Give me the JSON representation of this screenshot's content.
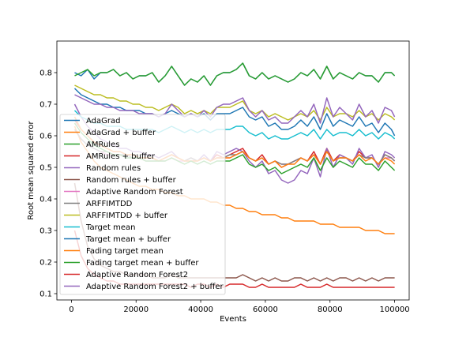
{
  "chart_data": {
    "type": "line",
    "title": "",
    "xlabel": "Events",
    "ylabel": "Root mean squared error",
    "xlim": [
      -4500,
      104500
    ],
    "ylim": [
      0.08,
      0.9
    ],
    "x_ticks": [
      0,
      20000,
      40000,
      60000,
      80000,
      100000
    ],
    "y_ticks": [
      0.1,
      0.2,
      0.3,
      0.4,
      0.5,
      0.6,
      0.7,
      0.8
    ],
    "grid": false,
    "legend_position": "lower-left",
    "x": [
      1000,
      3000,
      5000,
      7000,
      9000,
      11000,
      13000,
      15000,
      17000,
      19000,
      21000,
      23000,
      25000,
      27000,
      29000,
      31000,
      33000,
      35000,
      37000,
      39000,
      41000,
      43000,
      45000,
      47000,
      49000,
      51000,
      53000,
      55000,
      57000,
      59000,
      61000,
      63000,
      65000,
      67000,
      69000,
      71000,
      73000,
      75000,
      77000,
      79000,
      81000,
      83000,
      85000,
      87000,
      89000,
      91000,
      93000,
      95000,
      97000,
      99000,
      100000
    ],
    "series": [
      {
        "name": "AdaGrad",
        "color": "#1f77b4",
        "values": [
          0.8,
          0.79,
          0.81,
          0.78,
          0.8,
          0.8,
          0.81,
          0.79,
          0.8,
          0.78,
          0.79,
          0.79,
          0.8,
          0.77,
          0.79,
          0.82,
          0.79,
          0.76,
          0.78,
          0.77,
          0.79,
          0.76,
          0.79,
          0.8,
          0.8,
          0.81,
          0.83,
          0.79,
          0.78,
          0.8,
          0.78,
          0.79,
          0.78,
          0.77,
          0.78,
          0.8,
          0.79,
          0.81,
          0.78,
          0.82,
          0.78,
          0.8,
          0.79,
          0.78,
          0.8,
          0.79,
          0.79,
          0.77,
          0.8,
          0.8,
          0.79
        ]
      },
      {
        "name": "AdaGrad + buffer",
        "color": "#ff7f0e",
        "values": [
          0.63,
          0.58,
          0.55,
          0.52,
          0.5,
          0.49,
          0.48,
          0.47,
          0.46,
          0.45,
          0.44,
          0.44,
          0.43,
          0.43,
          0.42,
          0.42,
          0.41,
          0.41,
          0.4,
          0.4,
          0.4,
          0.39,
          0.39,
          0.38,
          0.38,
          0.37,
          0.37,
          0.36,
          0.36,
          0.35,
          0.35,
          0.35,
          0.34,
          0.34,
          0.33,
          0.33,
          0.33,
          0.33,
          0.32,
          0.32,
          0.32,
          0.31,
          0.31,
          0.31,
          0.31,
          0.3,
          0.3,
          0.3,
          0.29,
          0.29,
          0.29
        ]
      },
      {
        "name": "AMRules",
        "color": "#2ca02c",
        "values": [
          0.79,
          0.8,
          0.81,
          0.79,
          0.8,
          0.8,
          0.81,
          0.79,
          0.8,
          0.78,
          0.79,
          0.79,
          0.8,
          0.77,
          0.79,
          0.82,
          0.79,
          0.76,
          0.78,
          0.77,
          0.79,
          0.76,
          0.79,
          0.8,
          0.8,
          0.81,
          0.83,
          0.79,
          0.78,
          0.8,
          0.78,
          0.79,
          0.78,
          0.77,
          0.78,
          0.8,
          0.79,
          0.81,
          0.78,
          0.82,
          0.78,
          0.8,
          0.79,
          0.78,
          0.8,
          0.79,
          0.79,
          0.77,
          0.8,
          0.8,
          0.79
        ]
      },
      {
        "name": "AMRules + buffer",
        "color": "#d62728",
        "values": [
          0.65,
          0.62,
          0.6,
          0.58,
          0.57,
          0.56,
          0.55,
          0.55,
          0.54,
          0.54,
          0.53,
          0.53,
          0.53,
          0.52,
          0.53,
          0.54,
          0.53,
          0.52,
          0.53,
          0.52,
          0.53,
          0.52,
          0.54,
          0.53,
          0.54,
          0.55,
          0.56,
          0.53,
          0.52,
          0.54,
          0.51,
          0.52,
          0.5,
          0.51,
          0.52,
          0.53,
          0.52,
          0.55,
          0.51,
          0.56,
          0.52,
          0.54,
          0.53,
          0.52,
          0.55,
          0.53,
          0.53,
          0.51,
          0.54,
          0.53,
          0.52
        ]
      },
      {
        "name": "Random rules",
        "color": "#9467bd",
        "values": [
          0.7,
          0.66,
          0.63,
          0.61,
          0.59,
          0.58,
          0.57,
          0.56,
          0.56,
          0.55,
          0.55,
          0.54,
          0.54,
          0.53,
          0.54,
          0.55,
          0.53,
          0.52,
          0.53,
          0.52,
          0.54,
          0.52,
          0.55,
          0.54,
          0.55,
          0.56,
          0.55,
          0.52,
          0.5,
          0.52,
          0.48,
          0.49,
          0.46,
          0.45,
          0.46,
          0.49,
          0.48,
          0.53,
          0.47,
          0.56,
          0.5,
          0.54,
          0.53,
          0.51,
          0.56,
          0.53,
          0.54,
          0.5,
          0.55,
          0.54,
          0.53
        ]
      },
      {
        "name": "Random rules + buffer",
        "color": "#8c564b",
        "values": [
          0.45,
          0.33,
          0.25,
          0.21,
          0.19,
          0.18,
          0.17,
          0.17,
          0.16,
          0.16,
          0.16,
          0.16,
          0.15,
          0.15,
          0.15,
          0.16,
          0.15,
          0.15,
          0.15,
          0.15,
          0.15,
          0.15,
          0.15,
          0.15,
          0.15,
          0.15,
          0.16,
          0.15,
          0.14,
          0.15,
          0.14,
          0.15,
          0.14,
          0.14,
          0.15,
          0.15,
          0.14,
          0.15,
          0.14,
          0.15,
          0.14,
          0.15,
          0.15,
          0.14,
          0.15,
          0.14,
          0.15,
          0.14,
          0.15,
          0.15,
          0.15
        ]
      },
      {
        "name": "Adaptive Random Forest",
        "color": "#e377c2",
        "values": [
          0.62,
          0.59,
          0.57,
          0.56,
          0.55,
          0.54,
          0.54,
          0.54,
          0.53,
          0.53,
          0.53,
          0.52,
          0.52,
          0.52,
          0.52,
          0.53,
          0.52,
          0.52,
          0.52,
          0.52,
          0.53,
          0.52,
          0.53,
          0.53,
          0.53,
          0.54,
          0.55,
          0.53,
          0.52,
          0.53,
          0.51,
          0.52,
          0.51,
          0.51,
          0.52,
          0.53,
          0.52,
          0.54,
          0.51,
          0.55,
          0.52,
          0.53,
          0.53,
          0.52,
          0.54,
          0.53,
          0.53,
          0.51,
          0.53,
          0.53,
          0.52
        ]
      },
      {
        "name": "ARFFIMTDD",
        "color": "#7f7f7f",
        "values": [
          0.62,
          0.59,
          0.57,
          0.56,
          0.55,
          0.55,
          0.54,
          0.54,
          0.54,
          0.53,
          0.53,
          0.53,
          0.53,
          0.52,
          0.53,
          0.54,
          0.53,
          0.52,
          0.53,
          0.52,
          0.53,
          0.52,
          0.53,
          0.53,
          0.54,
          0.54,
          0.55,
          0.53,
          0.52,
          0.53,
          0.51,
          0.52,
          0.51,
          0.51,
          0.52,
          0.53,
          0.52,
          0.54,
          0.51,
          0.55,
          0.52,
          0.53,
          0.53,
          0.52,
          0.54,
          0.53,
          0.53,
          0.51,
          0.54,
          0.53,
          0.52
        ]
      },
      {
        "name": "ARFFIMTDD + buffer",
        "color": "#bcbd22",
        "values": [
          0.76,
          0.75,
          0.74,
          0.73,
          0.73,
          0.72,
          0.72,
          0.71,
          0.71,
          0.7,
          0.7,
          0.69,
          0.69,
          0.68,
          0.69,
          0.7,
          0.69,
          0.67,
          0.68,
          0.67,
          0.68,
          0.67,
          0.69,
          0.69,
          0.69,
          0.7,
          0.71,
          0.68,
          0.67,
          0.68,
          0.66,
          0.67,
          0.66,
          0.65,
          0.66,
          0.67,
          0.66,
          0.68,
          0.65,
          0.69,
          0.66,
          0.67,
          0.67,
          0.66,
          0.68,
          0.66,
          0.67,
          0.65,
          0.67,
          0.66,
          0.65
        ]
      },
      {
        "name": "Target mean",
        "color": "#17becf",
        "values": [
          0.68,
          0.66,
          0.65,
          0.64,
          0.64,
          0.63,
          0.63,
          0.63,
          0.62,
          0.62,
          0.62,
          0.62,
          0.62,
          0.61,
          0.62,
          0.63,
          0.62,
          0.61,
          0.62,
          0.61,
          0.62,
          0.61,
          0.62,
          0.62,
          0.62,
          0.63,
          0.63,
          0.61,
          0.6,
          0.61,
          0.59,
          0.6,
          0.59,
          0.59,
          0.6,
          0.61,
          0.6,
          0.62,
          0.59,
          0.62,
          0.6,
          0.61,
          0.61,
          0.6,
          0.62,
          0.6,
          0.61,
          0.59,
          0.61,
          0.6,
          0.59
        ]
      },
      {
        "name": "Target mean + buffer",
        "color": "#1f77b4",
        "values": [
          0.75,
          0.73,
          0.72,
          0.71,
          0.7,
          0.7,
          0.69,
          0.69,
          0.68,
          0.68,
          0.68,
          0.67,
          0.67,
          0.66,
          0.67,
          0.68,
          0.67,
          0.66,
          0.67,
          0.66,
          0.67,
          0.65,
          0.67,
          0.67,
          0.67,
          0.68,
          0.69,
          0.66,
          0.65,
          0.66,
          0.63,
          0.64,
          0.62,
          0.62,
          0.63,
          0.65,
          0.63,
          0.66,
          0.62,
          0.67,
          0.63,
          0.65,
          0.64,
          0.63,
          0.66,
          0.63,
          0.64,
          0.61,
          0.64,
          0.62,
          0.6
        ]
      },
      {
        "name": "Fading target mean",
        "color": "#ff7f0e",
        "values": [
          0.66,
          0.62,
          0.6,
          0.58,
          0.57,
          0.56,
          0.55,
          0.55,
          0.54,
          0.54,
          0.53,
          0.53,
          0.53,
          0.52,
          0.53,
          0.54,
          0.53,
          0.52,
          0.52,
          0.52,
          0.53,
          0.52,
          0.53,
          0.53,
          0.53,
          0.54,
          0.55,
          0.53,
          0.52,
          0.53,
          0.51,
          0.52,
          0.5,
          0.51,
          0.51,
          0.53,
          0.52,
          0.54,
          0.51,
          0.55,
          0.52,
          0.53,
          0.53,
          0.52,
          0.54,
          0.52,
          0.53,
          0.51,
          0.53,
          0.52,
          0.51
        ]
      },
      {
        "name": "Fading target mean + buffer",
        "color": "#2ca02c",
        "values": [
          0.64,
          0.61,
          0.59,
          0.57,
          0.56,
          0.55,
          0.54,
          0.54,
          0.53,
          0.53,
          0.53,
          0.52,
          0.52,
          0.52,
          0.52,
          0.53,
          0.52,
          0.51,
          0.52,
          0.51,
          0.52,
          0.51,
          0.52,
          0.52,
          0.52,
          0.53,
          0.54,
          0.51,
          0.5,
          0.51,
          0.49,
          0.5,
          0.48,
          0.49,
          0.5,
          0.51,
          0.5,
          0.53,
          0.49,
          0.53,
          0.5,
          0.52,
          0.51,
          0.5,
          0.53,
          0.51,
          0.51,
          0.49,
          0.52,
          0.5,
          0.49
        ]
      },
      {
        "name": "Adaptive Random Forest2",
        "color": "#d62728",
        "values": [
          0.3,
          0.22,
          0.18,
          0.16,
          0.15,
          0.14,
          0.14,
          0.13,
          0.13,
          0.13,
          0.13,
          0.13,
          0.13,
          0.13,
          0.13,
          0.13,
          0.13,
          0.13,
          0.12,
          0.13,
          0.13,
          0.12,
          0.13,
          0.12,
          0.13,
          0.13,
          0.13,
          0.12,
          0.12,
          0.13,
          0.12,
          0.12,
          0.12,
          0.12,
          0.12,
          0.13,
          0.12,
          0.12,
          0.12,
          0.13,
          0.12,
          0.12,
          0.12,
          0.12,
          0.12,
          0.12,
          0.12,
          0.12,
          0.12,
          0.12,
          0.12
        ]
      },
      {
        "name": "Adaptive Random Forest2 + buffer",
        "color": "#9467bd",
        "values": [
          0.73,
          0.72,
          0.71,
          0.7,
          0.7,
          0.69,
          0.69,
          0.68,
          0.68,
          0.68,
          0.67,
          0.67,
          0.67,
          0.66,
          0.67,
          0.7,
          0.68,
          0.66,
          0.67,
          0.66,
          0.68,
          0.66,
          0.69,
          0.7,
          0.7,
          0.71,
          0.72,
          0.68,
          0.66,
          0.68,
          0.65,
          0.66,
          0.64,
          0.64,
          0.66,
          0.68,
          0.66,
          0.7,
          0.64,
          0.72,
          0.66,
          0.69,
          0.67,
          0.65,
          0.7,
          0.66,
          0.68,
          0.64,
          0.69,
          0.68,
          0.66
        ]
      }
    ]
  }
}
